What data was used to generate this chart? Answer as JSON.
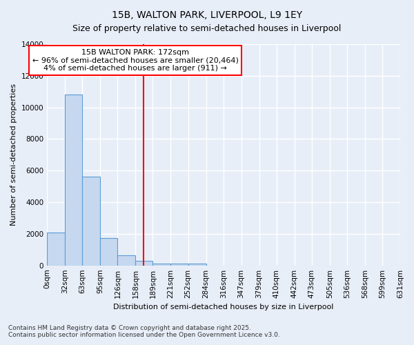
{
  "title": "15B, WALTON PARK, LIVERPOOL, L9 1EY",
  "subtitle": "Size of property relative to semi-detached houses in Liverpool",
  "xlabel": "Distribution of semi-detached houses by size in Liverpool",
  "ylabel": "Number of semi-detached properties",
  "bar_values": [
    2100,
    10800,
    5600,
    1750,
    650,
    280,
    130,
    100,
    100,
    0,
    0,
    0,
    0,
    0,
    0,
    0,
    0,
    0,
    0,
    0
  ],
  "bin_edges": [
    0,
    32,
    63,
    95,
    126,
    158,
    189,
    221,
    252,
    284,
    316,
    347,
    379,
    410,
    442,
    473,
    505,
    536,
    568,
    599,
    631
  ],
  "xtick_labels": [
    "0sqm",
    "32sqm",
    "63sqm",
    "95sqm",
    "126sqm",
    "158sqm",
    "189sqm",
    "221sqm",
    "252sqm",
    "284sqm",
    "316sqm",
    "347sqm",
    "379sqm",
    "410sqm",
    "442sqm",
    "473sqm",
    "505sqm",
    "536sqm",
    "568sqm",
    "599sqm",
    "631sqm"
  ],
  "ylim": [
    0,
    14000
  ],
  "bar_color": "#c5d8f0",
  "bar_edge_color": "#5b9bd5",
  "bg_color": "#e8eef8",
  "grid_color": "#ffffff",
  "red_line_x": 172,
  "annotation_title": "15B WALTON PARK: 172sqm",
  "annotation_line1": "← 96% of semi-detached houses are smaller (20,464)",
  "annotation_line2": "4% of semi-detached houses are larger (911) →",
  "footer1": "Contains HM Land Registry data © Crown copyright and database right 2025.",
  "footer2": "Contains public sector information licensed under the Open Government Licence v3.0.",
  "title_fontsize": 10,
  "subtitle_fontsize": 9,
  "axis_label_fontsize": 8,
  "tick_fontsize": 7.5,
  "annot_fontsize": 8,
  "footer_fontsize": 6.5
}
